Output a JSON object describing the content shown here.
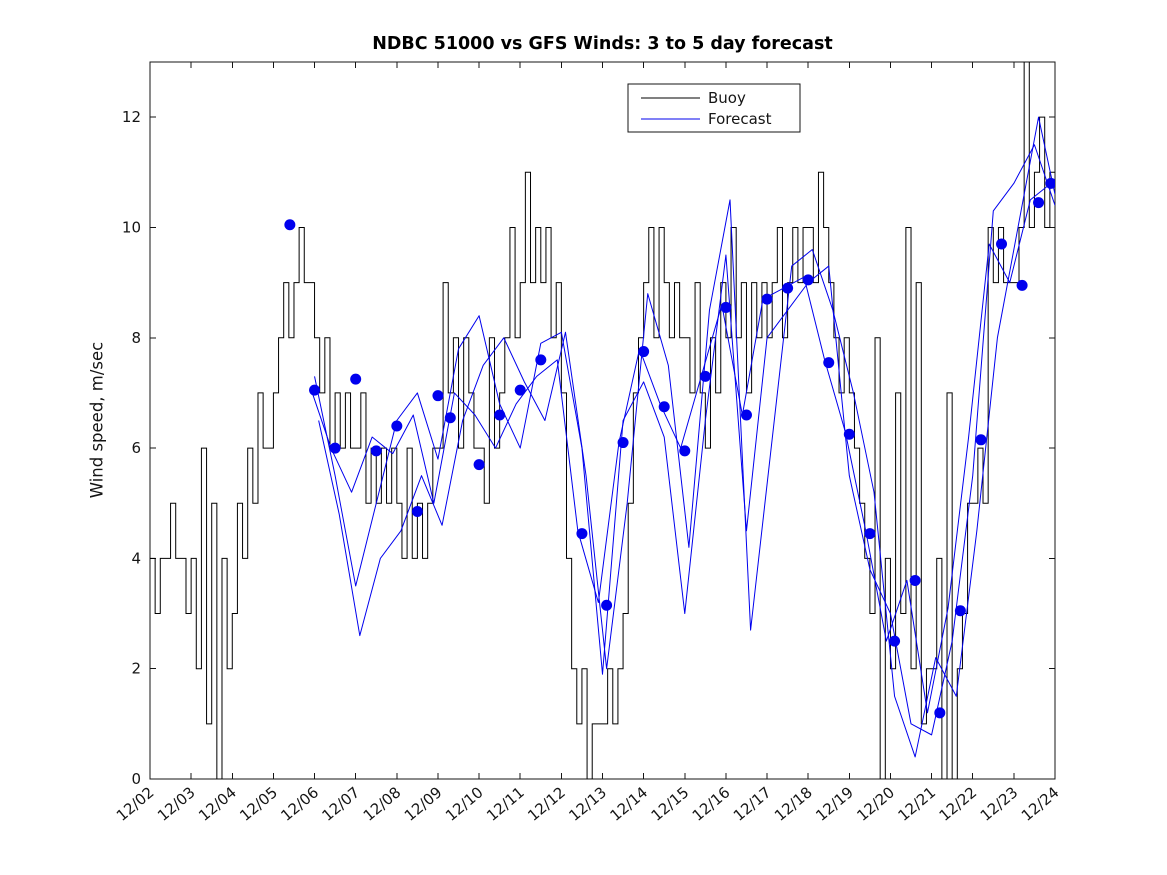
{
  "figure": {
    "background": "#ffffff"
  },
  "chart_data": {
    "type": "line",
    "title": "NDBC 51000 vs GFS Winds: 3 to 5 day forecast",
    "xlabel": "",
    "ylabel": "Wind speed, m/sec",
    "xlim": [
      0,
      22
    ],
    "ylim": [
      0,
      13
    ],
    "grid": false,
    "axis_color": "#151515",
    "x_ticks": [
      0,
      1,
      2,
      3,
      4,
      5,
      6,
      7,
      8,
      9,
      10,
      11,
      12,
      13,
      14,
      15,
      16,
      17,
      18,
      19,
      20,
      21,
      22
    ],
    "x_tick_labels": [
      "12/02",
      "12/03",
      "12/04",
      "12/05",
      "12/06",
      "12/07",
      "12/08",
      "12/09",
      "12/10",
      "12/11",
      "12/12",
      "12/13",
      "12/14",
      "12/15",
      "12/16",
      "12/17",
      "12/18",
      "12/19",
      "12/20",
      "12/21",
      "12/22",
      "12/23",
      "12/24"
    ],
    "x_tick_rotation_deg": 40,
    "y_ticks": [
      0,
      2,
      4,
      6,
      8,
      10,
      12
    ],
    "legend": {
      "position": "top-center",
      "entries": [
        {
          "label": "Buoy",
          "color": "#000000"
        },
        {
          "label": "Forecast",
          "color": "#0000ee"
        }
      ]
    },
    "series": [
      {
        "name": "Buoy",
        "type": "stairs",
        "color": "#000000",
        "line_width": 1,
        "t_start": 0,
        "t_step": 0.125,
        "values": [
          4,
          3,
          4,
          4,
          5,
          4,
          4,
          3,
          4,
          2,
          6,
          1,
          5,
          0,
          4,
          2,
          3,
          5,
          4,
          6,
          5,
          7,
          6,
          6,
          7,
          8,
          9,
          8,
          9,
          10,
          9,
          9,
          8,
          7,
          8,
          6,
          7,
          6,
          7,
          6,
          6,
          7,
          5,
          6,
          5,
          6,
          5,
          6,
          5,
          4,
          6,
          4,
          5,
          4,
          5,
          6,
          6,
          9,
          7,
          8,
          6,
          8,
          7,
          6,
          6,
          5,
          8,
          6,
          7,
          8,
          10,
          8,
          9,
          11,
          9,
          10,
          9,
          10,
          8,
          9,
          7,
          4,
          2,
          1,
          2,
          0,
          1,
          1,
          1,
          2,
          1,
          2,
          3,
          5,
          7,
          8,
          9,
          10,
          8,
          10,
          9,
          8,
          9,
          8,
          8,
          7,
          9,
          7,
          6,
          8,
          7,
          9,
          8,
          10,
          8,
          9,
          7,
          9,
          8,
          9,
          8,
          9,
          10,
          8,
          9,
          10,
          9,
          10,
          10,
          9,
          11,
          10,
          9,
          8,
          7,
          8,
          7,
          6,
          5,
          4,
          3,
          8,
          0,
          4,
          2,
          7,
          3,
          10,
          2,
          9,
          1,
          2,
          2,
          4,
          0,
          7,
          0,
          2,
          3,
          5,
          5,
          6,
          5,
          10,
          9,
          10,
          9,
          9,
          9,
          10,
          13.2,
          10,
          11,
          12,
          10,
          11
        ]
      },
      {
        "name": "Forecast run 1",
        "type": "line",
        "color": "#0000ee",
        "line_width": 1,
        "points": [
          [
            3.9,
            7.1
          ],
          [
            4.4,
            6.0
          ],
          [
            4.9,
            5.2
          ],
          [
            5.4,
            6.2
          ],
          [
            5.9,
            5.9
          ],
          [
            6.4,
            6.6
          ],
          [
            6.9,
            5.0
          ],
          [
            7.4,
            7.0
          ],
          [
            7.9,
            6.6
          ],
          [
            8.4,
            6.0
          ],
          [
            8.9,
            6.8
          ],
          [
            9.4,
            7.3
          ],
          [
            9.9,
            7.6
          ],
          [
            10.4,
            4.5
          ],
          [
            10.9,
            3.2
          ],
          [
            11.4,
            6.1
          ],
          [
            11.9,
            7.8
          ],
          [
            12.4,
            6.8
          ],
          [
            12.9,
            6.0
          ],
          [
            13.4,
            7.3
          ],
          [
            13.9,
            8.6
          ],
          [
            14.4,
            6.6
          ],
          [
            14.9,
            8.7
          ],
          [
            15.4,
            8.9
          ],
          [
            15.9,
            9.1
          ],
          [
            16.4,
            7.6
          ],
          [
            16.9,
            6.3
          ],
          [
            17.4,
            4.5
          ],
          [
            17.9,
            2.5
          ],
          [
            18.4,
            3.6
          ],
          [
            18.9,
            1.2
          ],
          [
            19.4,
            3.1
          ],
          [
            19.9,
            6.2
          ],
          [
            20.4,
            9.7
          ],
          [
            20.9,
            9.0
          ],
          [
            21.4,
            10.5
          ],
          [
            21.9,
            10.8
          ]
        ]
      },
      {
        "name": "Forecast run 2",
        "type": "line",
        "color": "#0000ee",
        "line_width": 1,
        "points": [
          [
            4.1,
            6.5
          ],
          [
            4.6,
            4.8
          ],
          [
            5.1,
            2.6
          ],
          [
            5.6,
            4.0
          ],
          [
            6.1,
            4.5
          ],
          [
            6.6,
            5.5
          ],
          [
            7.1,
            4.6
          ],
          [
            7.6,
            6.5
          ],
          [
            8.1,
            7.5
          ],
          [
            8.6,
            8.0
          ],
          [
            9.1,
            7.2
          ],
          [
            9.6,
            6.5
          ],
          [
            10.1,
            8.1
          ],
          [
            10.6,
            5.5
          ],
          [
            11.1,
            2.0
          ],
          [
            11.6,
            5.0
          ],
          [
            12.1,
            8.8
          ],
          [
            12.6,
            7.5
          ],
          [
            13.1,
            4.2
          ],
          [
            13.6,
            8.5
          ],
          [
            14.1,
            10.5
          ],
          [
            14.6,
            2.7
          ],
          [
            15.1,
            6.0
          ],
          [
            15.6,
            9.3
          ],
          [
            16.1,
            9.6
          ],
          [
            16.6,
            8.5
          ],
          [
            17.1,
            7.0
          ],
          [
            17.6,
            5.2
          ],
          [
            18.1,
            1.5
          ],
          [
            18.6,
            0.4
          ],
          [
            19.1,
            2.2
          ],
          [
            19.6,
            1.5
          ],
          [
            20.1,
            4.5
          ],
          [
            20.6,
            8.0
          ],
          [
            21.1,
            10.0
          ],
          [
            21.6,
            12.0
          ],
          [
            22.0,
            10.6
          ]
        ]
      },
      {
        "name": "Forecast run 3",
        "type": "line",
        "color": "#0000ee",
        "line_width": 1,
        "points": [
          [
            4.0,
            7.3
          ],
          [
            4.5,
            5.5
          ],
          [
            5.0,
            3.5
          ],
          [
            5.5,
            5.0
          ],
          [
            6.0,
            6.5
          ],
          [
            6.5,
            7.0
          ],
          [
            7.0,
            5.8
          ],
          [
            7.5,
            7.8
          ],
          [
            8.0,
            8.4
          ],
          [
            8.5,
            6.8
          ],
          [
            9.0,
            6.0
          ],
          [
            9.5,
            7.9
          ],
          [
            10.0,
            8.1
          ],
          [
            10.5,
            6.0
          ],
          [
            11.0,
            1.9
          ],
          [
            11.5,
            6.5
          ],
          [
            12.0,
            7.2
          ],
          [
            12.5,
            6.2
          ],
          [
            13.0,
            3.0
          ],
          [
            13.5,
            6.5
          ],
          [
            14.0,
            9.5
          ],
          [
            14.5,
            4.5
          ],
          [
            15.0,
            8.0
          ],
          [
            15.5,
            8.5
          ],
          [
            16.0,
            9.0
          ],
          [
            16.5,
            9.3
          ],
          [
            17.0,
            5.5
          ],
          [
            17.5,
            3.8
          ],
          [
            18.0,
            3.0
          ],
          [
            18.5,
            1.0
          ],
          [
            19.0,
            0.8
          ],
          [
            19.5,
            2.5
          ],
          [
            20.0,
            5.5
          ],
          [
            20.5,
            10.3
          ],
          [
            21.0,
            10.8
          ],
          [
            21.5,
            11.5
          ],
          [
            22.0,
            10.4
          ]
        ]
      }
    ],
    "markers": {
      "name": "Forecast points",
      "color": "#0000ee",
      "radius": 5.5,
      "points": [
        [
          3.4,
          10.05
        ],
        [
          4.0,
          7.05
        ],
        [
          4.5,
          6.0
        ],
        [
          5.0,
          7.25
        ],
        [
          5.5,
          5.95
        ],
        [
          6.0,
          6.4
        ],
        [
          6.5,
          4.85
        ],
        [
          7.0,
          6.95
        ],
        [
          7.3,
          6.55
        ],
        [
          8.0,
          5.7
        ],
        [
          8.5,
          6.6
        ],
        [
          9.0,
          7.05
        ],
        [
          9.5,
          7.6
        ],
        [
          10.5,
          4.45
        ],
        [
          11.1,
          3.15
        ],
        [
          11.5,
          6.1
        ],
        [
          12.0,
          7.75
        ],
        [
          12.5,
          6.75
        ],
        [
          13.0,
          5.95
        ],
        [
          13.5,
          7.3
        ],
        [
          14.0,
          8.55
        ],
        [
          14.5,
          6.6
        ],
        [
          15.0,
          8.7
        ],
        [
          15.5,
          8.9
        ],
        [
          16.0,
          9.05
        ],
        [
          16.5,
          7.55
        ],
        [
          17.0,
          6.25
        ],
        [
          17.5,
          4.45
        ],
        [
          18.1,
          2.5
        ],
        [
          18.6,
          3.6
        ],
        [
          19.2,
          1.2
        ],
        [
          19.7,
          3.05
        ],
        [
          20.2,
          6.15
        ],
        [
          20.7,
          9.7
        ],
        [
          21.2,
          8.95
        ],
        [
          21.6,
          10.45
        ],
        [
          21.9,
          10.8
        ]
      ]
    }
  }
}
